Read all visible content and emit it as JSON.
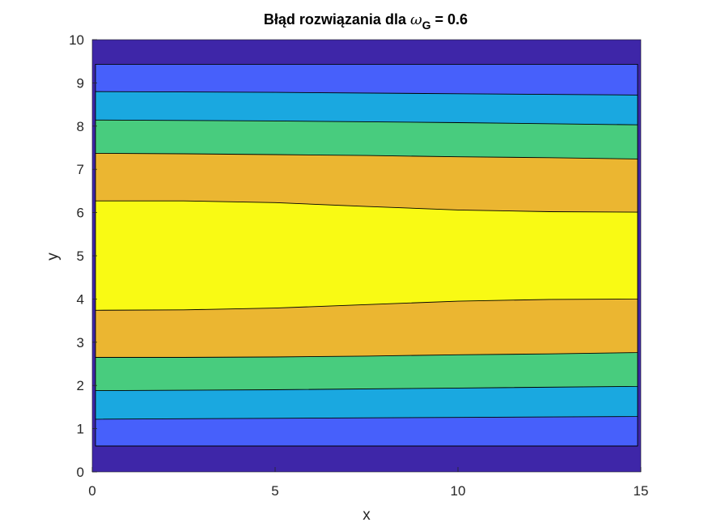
{
  "chart_data": {
    "type": "contour",
    "title_prefix": "Błąd rozwiązania dla ",
    "title_symbol": "ω",
    "title_subscript": "G",
    "title_suffix": " = 0.6",
    "xlabel": "x",
    "ylabel": "y",
    "xlim": [
      0,
      15
    ],
    "ylim": [
      0,
      10
    ],
    "xticks": [
      "0",
      "5",
      "10",
      "15"
    ],
    "yticks": [
      "0",
      "1",
      "2",
      "3",
      "4",
      "5",
      "6",
      "7",
      "8",
      "9",
      "10"
    ],
    "grid": false,
    "levels": [
      {
        "name": "level-1",
        "color": "#3e26a8"
      },
      {
        "name": "level-2",
        "color": "#4760fb"
      },
      {
        "name": "level-3",
        "color": "#1aa8e0"
      },
      {
        "name": "level-4",
        "color": "#48cc7e"
      },
      {
        "name": "level-5",
        "color": "#ebb631"
      },
      {
        "name": "level-6",
        "color": "#f9fa14"
      }
    ],
    "contours": [
      {
        "level": 1,
        "top": {
          "x": [
            0,
            15
          ],
          "y": [
            9.43,
            9.43
          ]
        },
        "bottom": {
          "x": [
            0,
            15
          ],
          "y": [
            0.6,
            0.6
          ]
        }
      },
      {
        "level": 2,
        "top": {
          "x": [
            0,
            5,
            10,
            15
          ],
          "y": [
            8.8,
            8.78,
            8.75,
            8.72
          ]
        },
        "bottom": {
          "x": [
            0,
            5,
            10,
            15
          ],
          "y": [
            1.22,
            1.24,
            1.26,
            1.28
          ]
        }
      },
      {
        "level": 3,
        "top": {
          "x": [
            0,
            5,
            10,
            15
          ],
          "y": [
            8.14,
            8.12,
            8.08,
            8.03
          ]
        },
        "bottom": {
          "x": [
            0,
            5,
            10,
            15
          ],
          "y": [
            1.88,
            1.9,
            1.94,
            1.98
          ]
        }
      },
      {
        "level": 4,
        "top": {
          "x": [
            0,
            2.5,
            5,
            7.5,
            10,
            12.5,
            15
          ],
          "y": [
            7.37,
            7.36,
            7.34,
            7.32,
            7.29,
            7.27,
            7.24
          ]
        },
        "bottom": {
          "x": [
            0,
            2.5,
            5,
            7.5,
            10,
            12.5,
            15
          ],
          "y": [
            2.65,
            2.65,
            2.66,
            2.68,
            2.71,
            2.73,
            2.76
          ]
        }
      },
      {
        "level": 5,
        "top": {
          "x": [
            0,
            2.5,
            5,
            7.5,
            10,
            12.5,
            15
          ],
          "y": [
            6.27,
            6.27,
            6.23,
            6.14,
            6.06,
            6.02,
            6.01
          ]
        },
        "bottom": {
          "x": [
            0,
            2.5,
            5,
            7.5,
            10,
            12.5,
            15
          ],
          "y": [
            3.74,
            3.75,
            3.79,
            3.87,
            3.95,
            3.99,
            4.0
          ]
        }
      }
    ]
  }
}
